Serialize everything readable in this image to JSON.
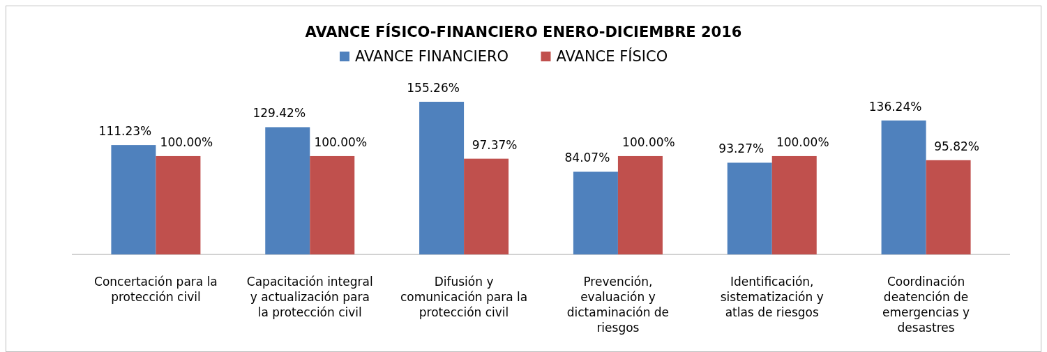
{
  "chart_data": {
    "type": "bar",
    "title": "AVANCE FÍSICO-FINANCIERO ENERO-DICIEMBRE  2016",
    "categories": [
      "Concertación para la protección civil",
      "Capacitación integral y actualización para la protección civil",
      "Difusión y comunicación para la protección civil",
      "Prevención, evaluación y dictaminación de riesgos",
      "Identificación, sistematización y atlas de riesgos",
      "Coordinación deatención de emergencias y desastres"
    ],
    "series": [
      {
        "name": "AVANCE FINANCIERO",
        "color": "#4f81bd",
        "values": [
          111.23,
          129.42,
          155.26,
          84.07,
          93.27,
          136.24
        ],
        "value_labels": [
          "111.23%",
          "129.42%",
          "155.26%",
          "84.07%",
          "93.27%",
          "136.24%"
        ]
      },
      {
        "name": "AVANCE FÍSICO",
        "color": "#c0504d",
        "values": [
          100.0,
          100.0,
          97.37,
          100.0,
          100.0,
          95.82
        ],
        "value_labels": [
          "100.00%",
          "100.00%",
          "97.37%",
          "100.00%",
          "100.00%",
          "95.82%"
        ]
      }
    ],
    "legend": "top"
  }
}
